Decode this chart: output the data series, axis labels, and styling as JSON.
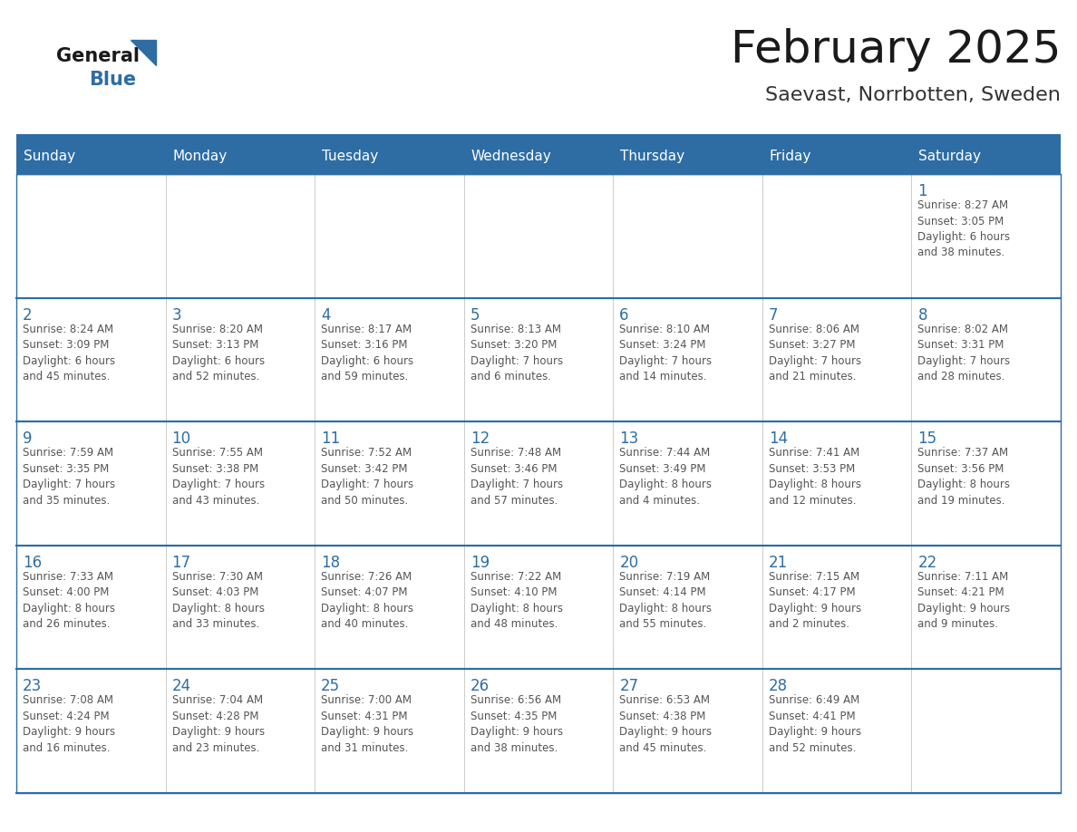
{
  "title": "February 2025",
  "subtitle": "Saevast, Norrbotten, Sweden",
  "days_of_week": [
    "Sunday",
    "Monday",
    "Tuesday",
    "Wednesday",
    "Thursday",
    "Friday",
    "Saturday"
  ],
  "header_bg": "#2E6DA4",
  "header_text": "#FFFFFF",
  "cell_bg": "#FFFFFF",
  "cell_bg_last": "#F5F5F5",
  "border_color": "#2E6DA4",
  "row_border_color": "#2E6DA4",
  "day_number_color": "#2E6DA4",
  "info_text_color": "#555555",
  "title_color": "#1a1a1a",
  "subtitle_color": "#333333",
  "logo_general_color": "#1a1a1a",
  "logo_blue_color": "#2E6DA4",
  "weeks": [
    [
      {
        "day": null,
        "info": ""
      },
      {
        "day": null,
        "info": ""
      },
      {
        "day": null,
        "info": ""
      },
      {
        "day": null,
        "info": ""
      },
      {
        "day": null,
        "info": ""
      },
      {
        "day": null,
        "info": ""
      },
      {
        "day": 1,
        "info": "Sunrise: 8:27 AM\nSunset: 3:05 PM\nDaylight: 6 hours\nand 38 minutes."
      }
    ],
    [
      {
        "day": 2,
        "info": "Sunrise: 8:24 AM\nSunset: 3:09 PM\nDaylight: 6 hours\nand 45 minutes."
      },
      {
        "day": 3,
        "info": "Sunrise: 8:20 AM\nSunset: 3:13 PM\nDaylight: 6 hours\nand 52 minutes."
      },
      {
        "day": 4,
        "info": "Sunrise: 8:17 AM\nSunset: 3:16 PM\nDaylight: 6 hours\nand 59 minutes."
      },
      {
        "day": 5,
        "info": "Sunrise: 8:13 AM\nSunset: 3:20 PM\nDaylight: 7 hours\nand 6 minutes."
      },
      {
        "day": 6,
        "info": "Sunrise: 8:10 AM\nSunset: 3:24 PM\nDaylight: 7 hours\nand 14 minutes."
      },
      {
        "day": 7,
        "info": "Sunrise: 8:06 AM\nSunset: 3:27 PM\nDaylight: 7 hours\nand 21 minutes."
      },
      {
        "day": 8,
        "info": "Sunrise: 8:02 AM\nSunset: 3:31 PM\nDaylight: 7 hours\nand 28 minutes."
      }
    ],
    [
      {
        "day": 9,
        "info": "Sunrise: 7:59 AM\nSunset: 3:35 PM\nDaylight: 7 hours\nand 35 minutes."
      },
      {
        "day": 10,
        "info": "Sunrise: 7:55 AM\nSunset: 3:38 PM\nDaylight: 7 hours\nand 43 minutes."
      },
      {
        "day": 11,
        "info": "Sunrise: 7:52 AM\nSunset: 3:42 PM\nDaylight: 7 hours\nand 50 minutes."
      },
      {
        "day": 12,
        "info": "Sunrise: 7:48 AM\nSunset: 3:46 PM\nDaylight: 7 hours\nand 57 minutes."
      },
      {
        "day": 13,
        "info": "Sunrise: 7:44 AM\nSunset: 3:49 PM\nDaylight: 8 hours\nand 4 minutes."
      },
      {
        "day": 14,
        "info": "Sunrise: 7:41 AM\nSunset: 3:53 PM\nDaylight: 8 hours\nand 12 minutes."
      },
      {
        "day": 15,
        "info": "Sunrise: 7:37 AM\nSunset: 3:56 PM\nDaylight: 8 hours\nand 19 minutes."
      }
    ],
    [
      {
        "day": 16,
        "info": "Sunrise: 7:33 AM\nSunset: 4:00 PM\nDaylight: 8 hours\nand 26 minutes."
      },
      {
        "day": 17,
        "info": "Sunrise: 7:30 AM\nSunset: 4:03 PM\nDaylight: 8 hours\nand 33 minutes."
      },
      {
        "day": 18,
        "info": "Sunrise: 7:26 AM\nSunset: 4:07 PM\nDaylight: 8 hours\nand 40 minutes."
      },
      {
        "day": 19,
        "info": "Sunrise: 7:22 AM\nSunset: 4:10 PM\nDaylight: 8 hours\nand 48 minutes."
      },
      {
        "day": 20,
        "info": "Sunrise: 7:19 AM\nSunset: 4:14 PM\nDaylight: 8 hours\nand 55 minutes."
      },
      {
        "day": 21,
        "info": "Sunrise: 7:15 AM\nSunset: 4:17 PM\nDaylight: 9 hours\nand 2 minutes."
      },
      {
        "day": 22,
        "info": "Sunrise: 7:11 AM\nSunset: 4:21 PM\nDaylight: 9 hours\nand 9 minutes."
      }
    ],
    [
      {
        "day": 23,
        "info": "Sunrise: 7:08 AM\nSunset: 4:24 PM\nDaylight: 9 hours\nand 16 minutes."
      },
      {
        "day": 24,
        "info": "Sunrise: 7:04 AM\nSunset: 4:28 PM\nDaylight: 9 hours\nand 23 minutes."
      },
      {
        "day": 25,
        "info": "Sunrise: 7:00 AM\nSunset: 4:31 PM\nDaylight: 9 hours\nand 31 minutes."
      },
      {
        "day": 26,
        "info": "Sunrise: 6:56 AM\nSunset: 4:35 PM\nDaylight: 9 hours\nand 38 minutes."
      },
      {
        "day": 27,
        "info": "Sunrise: 6:53 AM\nSunset: 4:38 PM\nDaylight: 9 hours\nand 45 minutes."
      },
      {
        "day": 28,
        "info": "Sunrise: 6:49 AM\nSunset: 4:41 PM\nDaylight: 9 hours\nand 52 minutes."
      },
      {
        "day": null,
        "info": ""
      }
    ]
  ]
}
